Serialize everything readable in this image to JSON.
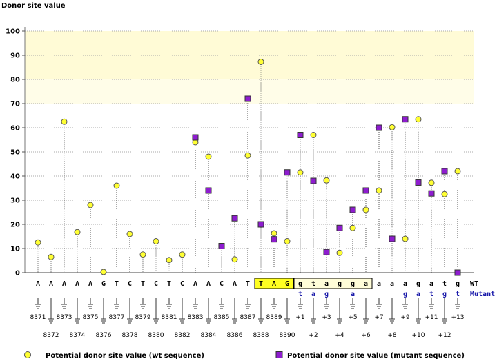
{
  "chart_data": {
    "type": "scatter",
    "ylabel": "Donor site value",
    "ylim": [
      0,
      100
    ],
    "yticks": [
      0,
      10,
      20,
      30,
      40,
      50,
      60,
      70,
      80,
      90,
      100
    ],
    "band_colors": {
      "high": "#fffbd6",
      "mid": "#fffde8"
    },
    "wt_row_label": "WT",
    "mut_row_label": "Mutant",
    "categories": [
      {
        "pos": "8371",
        "wt": "A",
        "mut": ""
      },
      {
        "pos": "8372",
        "wt": "A",
        "mut": ""
      },
      {
        "pos": "8373",
        "wt": "A",
        "mut": ""
      },
      {
        "pos": "8374",
        "wt": "A",
        "mut": ""
      },
      {
        "pos": "8375",
        "wt": "A",
        "mut": ""
      },
      {
        "pos": "8376",
        "wt": "G",
        "mut": ""
      },
      {
        "pos": "8377",
        "wt": "T",
        "mut": ""
      },
      {
        "pos": "8378",
        "wt": "C",
        "mut": ""
      },
      {
        "pos": "8379",
        "wt": "T",
        "mut": ""
      },
      {
        "pos": "8380",
        "wt": "C",
        "mut": ""
      },
      {
        "pos": "8381",
        "wt": "T",
        "mut": ""
      },
      {
        "pos": "8382",
        "wt": "C",
        "mut": ""
      },
      {
        "pos": "8383",
        "wt": "A",
        "mut": ""
      },
      {
        "pos": "8384",
        "wt": "A",
        "mut": ""
      },
      {
        "pos": "8385",
        "wt": "C",
        "mut": ""
      },
      {
        "pos": "8386",
        "wt": "A",
        "mut": ""
      },
      {
        "pos": "8387",
        "wt": "T",
        "mut": ""
      },
      {
        "pos": "8388",
        "wt": "T",
        "mut": ""
      },
      {
        "pos": "8389",
        "wt": "A",
        "mut": ""
      },
      {
        "pos": "8390",
        "wt": "G",
        "mut": ""
      },
      {
        "pos": "+1",
        "wt": "g",
        "mut": "t"
      },
      {
        "pos": "+2",
        "wt": "t",
        "mut": "a"
      },
      {
        "pos": "+3",
        "wt": "a",
        "mut": "g"
      },
      {
        "pos": "+4",
        "wt": "g",
        "mut": ""
      },
      {
        "pos": "+5",
        "wt": "g",
        "mut": "a"
      },
      {
        "pos": "+6",
        "wt": "a",
        "mut": ""
      },
      {
        "pos": "+7",
        "wt": "a",
        "mut": ""
      },
      {
        "pos": "+8",
        "wt": "a",
        "mut": ""
      },
      {
        "pos": "+9",
        "wt": "a",
        "mut": "g"
      },
      {
        "pos": "+10",
        "wt": "g",
        "mut": "a"
      },
      {
        "pos": "+11",
        "wt": "a",
        "mut": "t"
      },
      {
        "pos": "+12",
        "wt": "t",
        "mut": "g"
      },
      {
        "pos": "+13",
        "wt": "g",
        "mut": "t"
      }
    ],
    "highlight_exon_range": [
      17,
      19
    ],
    "highlight_intron_range": [
      20,
      25
    ],
    "series": [
      {
        "name": "Potential donor site value (wt sequence)",
        "marker": "circle",
        "color": "#ffff33",
        "values": [
          12.5,
          6.5,
          62.5,
          16.8,
          28,
          0.3,
          36,
          16,
          7.5,
          13,
          5.2,
          7.5,
          54,
          48,
          11,
          5.5,
          48.5,
          87.3,
          16.3,
          13,
          41.5,
          57,
          38.2,
          8.2,
          18.5,
          26,
          34,
          60.2,
          14,
          63.5,
          37.2,
          32.5,
          42
        ]
      },
      {
        "name": "Potential donor site value (mutant sequence)",
        "marker": "square",
        "color": "#8e1ccf",
        "values": [
          null,
          null,
          null,
          null,
          null,
          null,
          null,
          null,
          null,
          null,
          null,
          null,
          56,
          34,
          11,
          22.5,
          72,
          20,
          13.8,
          41.5,
          57,
          38,
          8.5,
          18.5,
          26,
          34,
          60,
          14,
          63.5,
          37.3,
          32.8,
          42,
          0
        ]
      }
    ]
  },
  "legend": {
    "wt_label": "Potential donor site value (wt sequence)",
    "mut_label": "Potential donor site value (mutant sequence)"
  }
}
